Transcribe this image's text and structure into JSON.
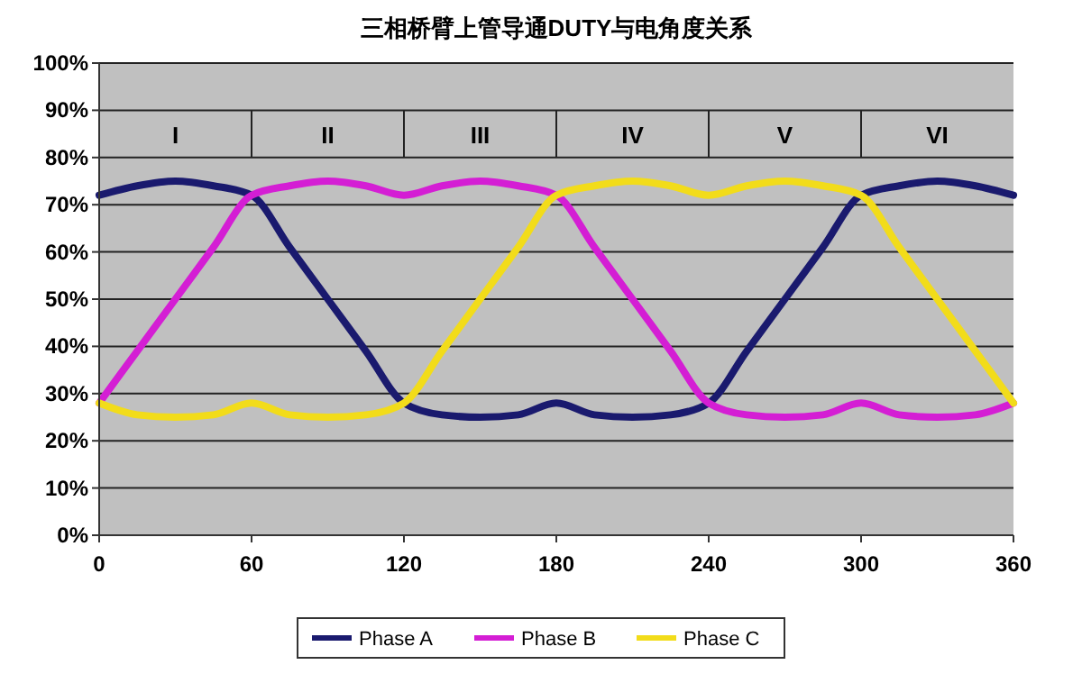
{
  "chart_data": {
    "type": "line",
    "title": "三相桥臂上管导通DUTY与电角度关系",
    "x": [
      0,
      15,
      30,
      45,
      60,
      75,
      90,
      105,
      120,
      135,
      150,
      165,
      180,
      195,
      210,
      225,
      240,
      255,
      270,
      285,
      300,
      315,
      330,
      345,
      360
    ],
    "series": [
      {
        "name": "Phase A",
        "color": "#1a1a6e",
        "values": [
          72,
          74,
          75,
          74,
          72,
          61,
          50,
          39,
          28,
          25.5,
          25,
          25.5,
          28,
          25.5,
          25,
          25.5,
          28,
          39,
          50,
          61,
          72,
          74,
          75,
          74,
          72
        ]
      },
      {
        "name": "Phase B",
        "color": "#d41ed4",
        "values": [
          28,
          39,
          50,
          61,
          72,
          74,
          75,
          74,
          72,
          74,
          75,
          74,
          72,
          61,
          50,
          39,
          28,
          25.5,
          25,
          25.5,
          28,
          25.5,
          25,
          25.5,
          28
        ]
      },
      {
        "name": "Phase C",
        "color": "#f2dc1a",
        "values": [
          28,
          25.5,
          25,
          25.5,
          28,
          25.5,
          25,
          25.5,
          28,
          39,
          50,
          61,
          72,
          74,
          75,
          74,
          72,
          74,
          75,
          74,
          72,
          61,
          50,
          39,
          28
        ]
      }
    ],
    "xlim": [
      0,
      360
    ],
    "xticks": [
      0,
      60,
      120,
      180,
      240,
      300,
      360
    ],
    "ylim": [
      0,
      100
    ],
    "yticks": [
      {
        "value": 0,
        "label": "0%"
      },
      {
        "value": 10,
        "label": "10%"
      },
      {
        "value": 20,
        "label": "20%"
      },
      {
        "value": 30,
        "label": "30%"
      },
      {
        "value": 40,
        "label": "40%"
      },
      {
        "value": 50,
        "label": "50%"
      },
      {
        "value": 60,
        "label": "60%"
      },
      {
        "value": 70,
        "label": "70%"
      },
      {
        "value": 80,
        "label": "80%"
      },
      {
        "value": 90,
        "label": "90%"
      },
      {
        "value": 100,
        "label": "100%"
      }
    ],
    "annotations": [
      "I",
      "II",
      "III",
      "IV",
      "V",
      "VI"
    ],
    "grid": "y",
    "legend": "bottom",
    "line_style": "solid"
  }
}
